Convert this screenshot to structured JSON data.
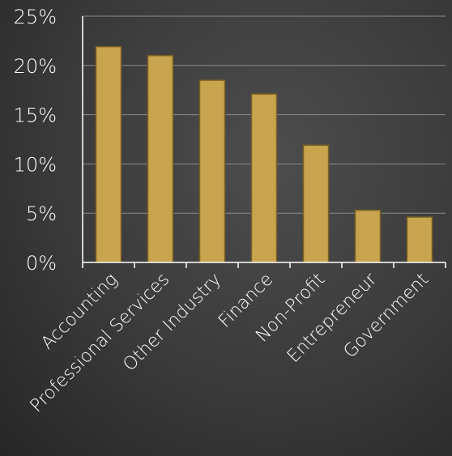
{
  "chart_data": {
    "type": "bar",
    "categories": [
      "Accounting",
      "Professional Services",
      "Other Industry",
      "Finance",
      "Non-Profit",
      "Entrepreneur",
      "Government"
    ],
    "values": [
      21.9,
      21.0,
      18.5,
      17.1,
      11.9,
      5.3,
      4.6
    ],
    "ylim": [
      0,
      25
    ],
    "y_ticks": [
      "0%",
      "5%",
      "10%",
      "15%",
      "20%",
      "25%"
    ],
    "title": "",
    "xlabel": "",
    "ylabel": "",
    "grid": true,
    "legend": "none",
    "colors": {
      "bar_fill": "#c9a44f",
      "bar_stroke": "#7a6024",
      "gridline": "#8a8a8a",
      "axis": "#ffffff",
      "text": "#ffffff"
    }
  }
}
